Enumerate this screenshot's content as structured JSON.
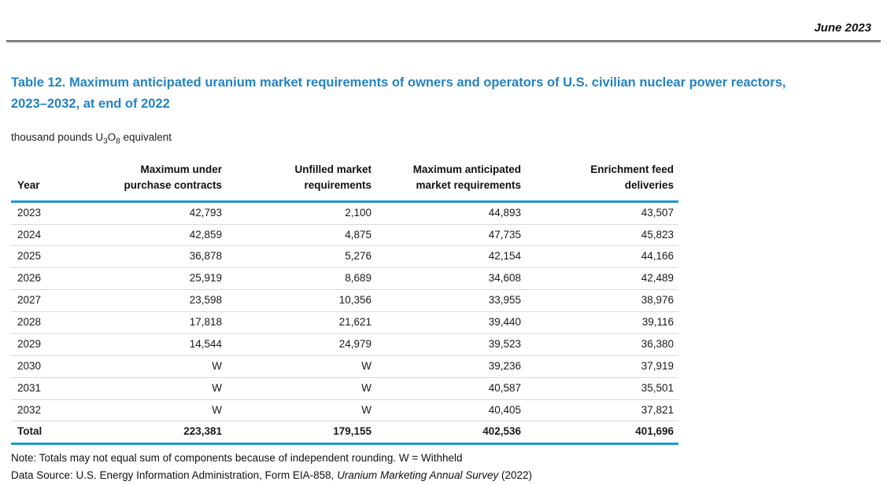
{
  "page": {
    "date_label": "June 2023",
    "title": "Table 12. Maximum anticipated uranium market requirements of owners and operators of U.S. civilian nuclear power reactors, 2023–2032, at end of 2022",
    "units": {
      "prefix": "thousand pounds U",
      "sub_3": "3",
      "o": "O",
      "sub_8": "8",
      "suffix": " equivalent"
    },
    "note": "Note: Totals may not equal sum of components because of independent rounding. W = Withheld",
    "source": {
      "prefix": "Data Source: U.S. Energy Information Administration, Form EIA-858, ",
      "italic": "Uranium Marketing Annual Survey",
      "suffix": " (2022)"
    },
    "colors": {
      "title_blue": "#2383c4",
      "rule_blue": "#1e96d2",
      "rule_gray": "#7f7f7f",
      "row_divider_gray": "#d9d9d9"
    }
  },
  "table": {
    "headers": [
      {
        "line1": "",
        "line2": "Year"
      },
      {
        "line1": "Maximum under",
        "line2": "purchase contracts"
      },
      {
        "line1": "Unfilled market",
        "line2": "requirements"
      },
      {
        "line1": "Maximum anticipated",
        "line2": "market requirements"
      },
      {
        "line1": "Enrichment feed",
        "line2": "deliveries"
      }
    ],
    "rows": [
      {
        "year": "2023",
        "values": [
          "42,793",
          "2,100",
          "44,893",
          "43,507"
        ]
      },
      {
        "year": "2024",
        "values": [
          "42,859",
          "4,875",
          "47,735",
          "45,823"
        ]
      },
      {
        "year": "2025",
        "values": [
          "36,878",
          "5,276",
          "42,154",
          "44,166"
        ]
      },
      {
        "year": "2026",
        "values": [
          "25,919",
          "8,689",
          "34,608",
          "42,489"
        ]
      },
      {
        "year": "2027",
        "values": [
          "23,598",
          "10,356",
          "33,955",
          "38,976"
        ]
      },
      {
        "year": "2028",
        "values": [
          "17,818",
          "21,621",
          "39,440",
          "39,116"
        ]
      },
      {
        "year": "2029",
        "values": [
          "14,544",
          "24,979",
          "39,523",
          "36,380"
        ]
      },
      {
        "year": "2030",
        "values": [
          "W",
          "W",
          "39,236",
          "37,919"
        ]
      },
      {
        "year": "2031",
        "values": [
          "W",
          "W",
          "40,587",
          "35,501"
        ]
      },
      {
        "year": "2032",
        "values": [
          "W",
          "W",
          "40,405",
          "37,821"
        ]
      }
    ],
    "total": {
      "label": "Total",
      "values": [
        "223,381",
        "179,155",
        "402,536",
        "401,696"
      ]
    }
  }
}
